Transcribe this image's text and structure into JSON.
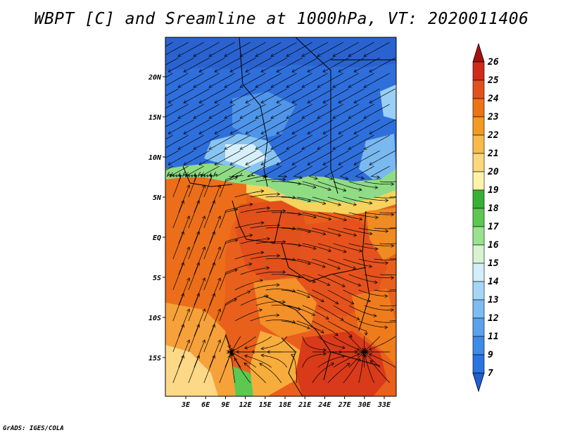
{
  "title": "WBPT [C] and Sreamline at 1000hPa, VT: 2020011406",
  "credit": "GrADS: IGES/COLA",
  "map": {
    "lat_labels": [
      "20N",
      "15N",
      "10N",
      "5N",
      "EQ",
      "5S",
      "10S",
      "15S"
    ],
    "lon_labels": [
      "3E",
      "6E",
      "9E",
      "12E",
      "15E",
      "18E",
      "21E",
      "24E",
      "27E",
      "30E",
      "33E"
    ]
  },
  "colorbar": {
    "labels": [
      "7",
      "9",
      "11",
      "12",
      "13",
      "14",
      "15",
      "16",
      "17",
      "18",
      "19",
      "20",
      "21",
      "22",
      "23",
      "24",
      "25",
      "26"
    ],
    "colors": [
      "#1f5fd6",
      "#2a74e0",
      "#3d8be6",
      "#5aa3ec",
      "#7dbdf2",
      "#a6d6f7",
      "#d2eefb",
      "#d7f3cf",
      "#9be28f",
      "#5cc851",
      "#37b036",
      "#fff3a8",
      "#fdd77a",
      "#f8bb4a",
      "#f39a22",
      "#ec7414",
      "#e2501c",
      "#cf2a1a",
      "#a8100f"
    ]
  }
}
